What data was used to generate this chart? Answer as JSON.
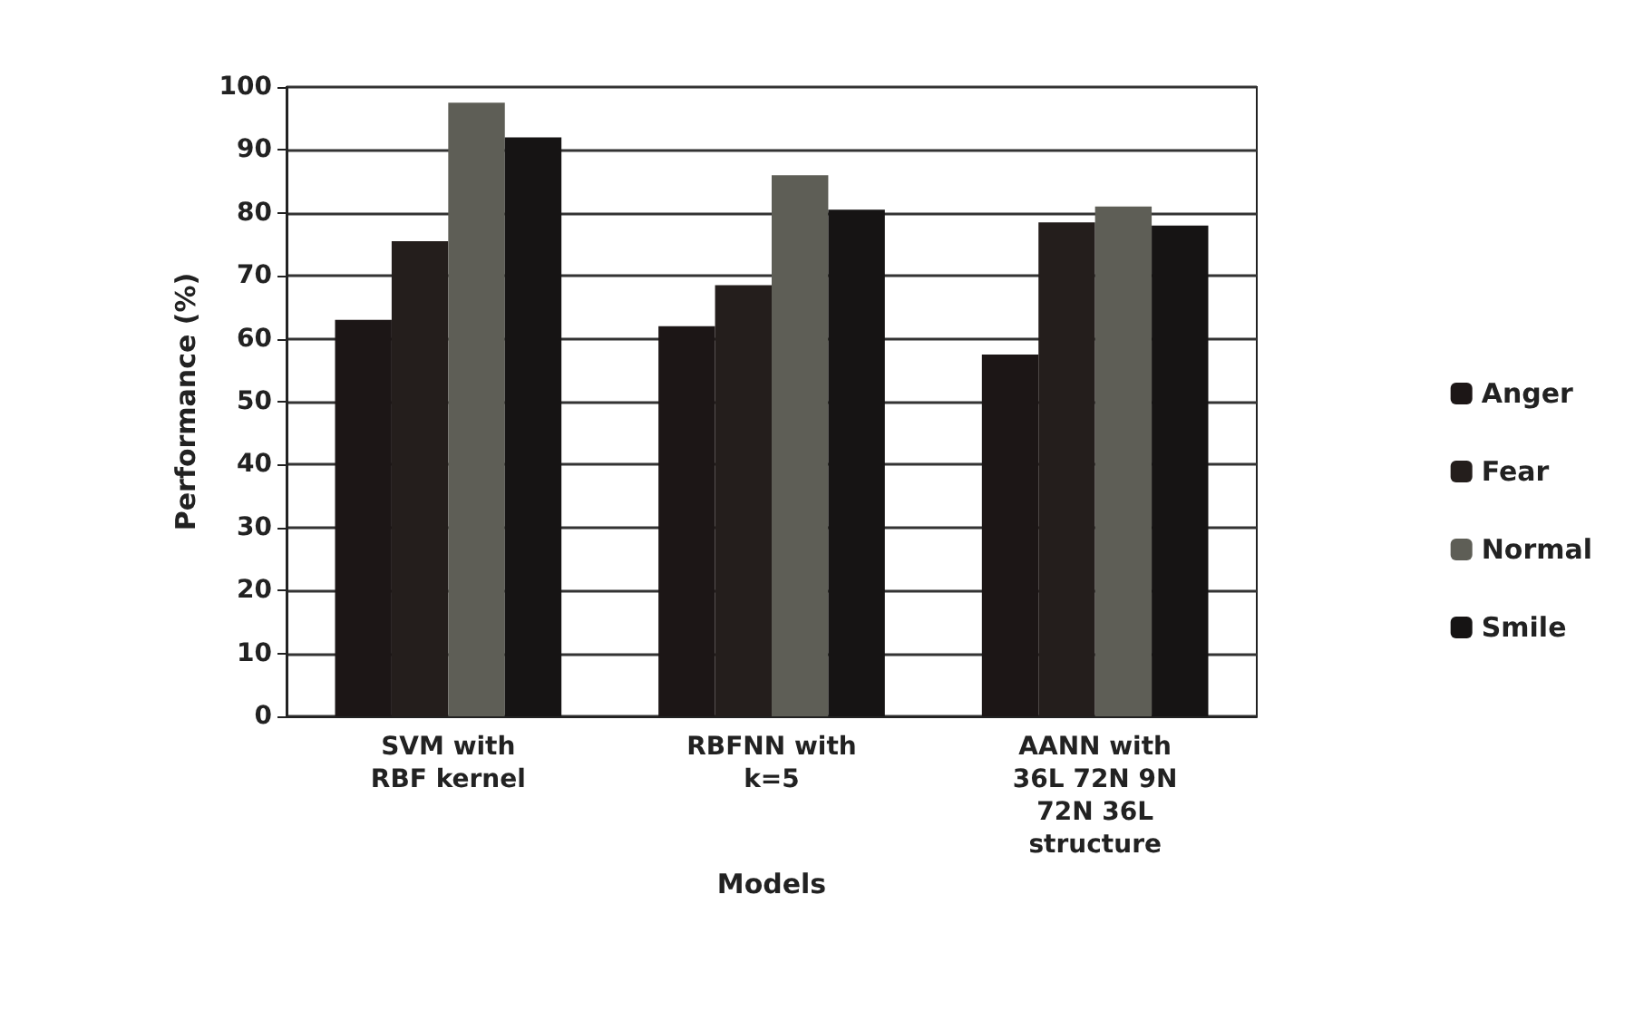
{
  "chart_data": {
    "type": "bar",
    "xlabel": "Models",
    "ylabel": "Performance (%)",
    "categories": [
      "SVM with\nRBF kernel",
      "RBFNN with\nk=5",
      "AANN with\n36L 72N 9N\n72N 36L\nstructure"
    ],
    "series": [
      {
        "name": "Anger",
        "color": "#1c1616",
        "values": [
          63,
          62,
          57.5
        ]
      },
      {
        "name": "Fear",
        "color": "#241e1c",
        "values": [
          75.5,
          68.5,
          78.5
        ]
      },
      {
        "name": "Normal",
        "color": "#5e5e56",
        "values": [
          97.5,
          86,
          81
        ]
      },
      {
        "name": "Smile",
        "color": "#161414",
        "values": [
          92,
          80.5,
          78
        ]
      }
    ],
    "ylim": [
      0,
      100
    ],
    "yticks": [
      0,
      10,
      20,
      30,
      40,
      50,
      60,
      70,
      80,
      90,
      100
    ],
    "grid": "y",
    "legend": "right"
  }
}
